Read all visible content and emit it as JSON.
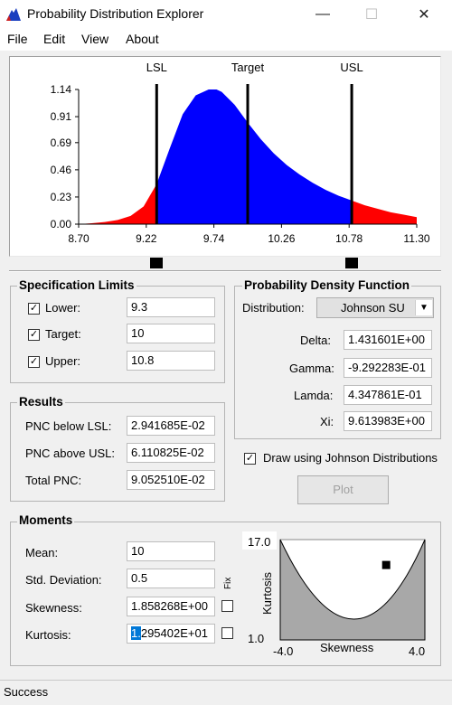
{
  "window": {
    "title": "Probability Distribution Explorer",
    "minimize_icon": "minimize-icon",
    "maximize_icon": "maximize-icon",
    "close_icon": "close-icon",
    "minimize_glyph": "—",
    "maximize_glyph": "☐",
    "close_glyph": "✕"
  },
  "menu": {
    "items": [
      "File",
      "Edit",
      "View",
      "About"
    ]
  },
  "chart_data": {
    "type": "area",
    "x_ticks": [
      "8.70",
      "9.22",
      "9.74",
      "10.26",
      "10.78",
      "11.30"
    ],
    "y_ticks": [
      "0.00",
      "0.23",
      "0.46",
      "0.69",
      "0.91",
      "1.14"
    ],
    "xlim": [
      8.7,
      11.3
    ],
    "ylim": [
      0,
      1.14
    ],
    "grid": false,
    "lines": [
      {
        "label": "LSL",
        "x": 9.3
      },
      {
        "label": "Target",
        "x": 10.0
      },
      {
        "label": "USL",
        "x": 10.8
      }
    ],
    "colors": {
      "inside": "#0000ff",
      "outside": "#ff0000",
      "axis": "#000000"
    },
    "series": [
      {
        "x": [
          8.7,
          8.8,
          8.9,
          9.0,
          9.1,
          9.2,
          9.3,
          9.4,
          9.5,
          9.6,
          9.7,
          9.76,
          9.8,
          9.9,
          10.0,
          10.1,
          10.2,
          10.3,
          10.4,
          10.5,
          10.6,
          10.7,
          10.8,
          10.9,
          11.0,
          11.1,
          11.2,
          11.3
        ],
        "values": [
          0.0,
          0.008,
          0.018,
          0.035,
          0.07,
          0.15,
          0.34,
          0.64,
          0.93,
          1.09,
          1.14,
          1.14,
          1.12,
          1.01,
          0.86,
          0.72,
          0.6,
          0.5,
          0.42,
          0.35,
          0.29,
          0.24,
          0.2,
          0.16,
          0.13,
          0.1,
          0.08,
          0.06
        ]
      }
    ]
  },
  "slider": {
    "lower_handle_value": 9.3,
    "upper_handle_value": 10.8
  },
  "spec_limits": {
    "title": "Specification Limits",
    "lower": {
      "label": "Lower:",
      "value": "9.3",
      "checked": "✓"
    },
    "target": {
      "label": "Target:",
      "value": "10",
      "checked": "✓"
    },
    "upper": {
      "label": "Upper:",
      "value": "10.8",
      "checked": "✓"
    }
  },
  "pdf": {
    "title": "Probability Density Function",
    "distribution_label": "Distribution:",
    "distribution_value": "Johnson SU",
    "delta_label": "Delta:",
    "delta": "1.431601E+00",
    "gamma_label": "Gamma:",
    "gamma": "-9.292283E-01",
    "lamda_label": "Lamda:",
    "lamda": "4.347861E-01",
    "xi_label": "Xi:",
    "xi": "9.613983E+00"
  },
  "results": {
    "title": "Results",
    "below_label": "PNC below LSL:",
    "below": "2.941685E-02",
    "above_label": "PNC above USL:",
    "above": "6.110825E-02",
    "total_label": "Total PNC:",
    "total": "9.052510E-02"
  },
  "johnson": {
    "label": "Draw using Johnson Distributions",
    "checked": "✓"
  },
  "plot_button": "Plot",
  "moments": {
    "title": "Moments",
    "mean_label": "Mean:",
    "mean": "10",
    "sd_label": "Std. Deviation:",
    "sd": "0.5",
    "skew_label": "Skewness:",
    "skew": "1.858268E+00",
    "kurt_label": "Kurtosis:",
    "kurt_selected": "1.",
    "kurt_rest": "295402E+01",
    "fix_label": "Fix"
  },
  "skew_kurt_plot": {
    "y_top": "17.0",
    "y_bottom": "1.0",
    "y_label": "Kurtosis",
    "x_left": "-4.0",
    "x_right": "4.0",
    "x_label": "Skewness",
    "point": {
      "skewness": 1.86,
      "kurtosis": 12.95
    }
  },
  "status": {
    "text": "Success"
  }
}
